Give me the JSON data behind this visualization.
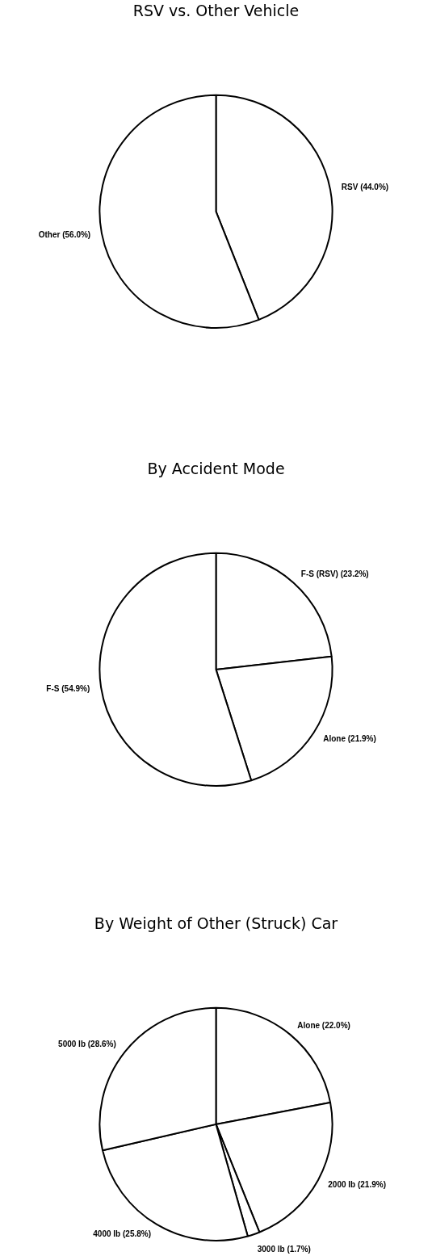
{
  "chart_data": [
    {
      "type": "pie",
      "title": "RSV vs. Other Vehicle",
      "categories": [
        "RSV",
        "Other"
      ],
      "values": [
        44.0,
        56.0
      ],
      "colors": [
        "#ffffff",
        "#ffffff"
      ],
      "value_labels": [
        "(44.0%)",
        "(56.0%)"
      ],
      "legend": false
    },
    {
      "type": "pie",
      "title": "By Accident Mode",
      "categories": [
        "F-S (RSV)",
        "Alone",
        "F-S"
      ],
      "values": [
        23.2,
        21.9,
        54.9
      ],
      "colors": [
        "#ffffff",
        "#ffffff",
        "#ffffff"
      ],
      "value_labels": [
        "(23.2%)",
        "(21.9%)",
        "(54.9%)"
      ],
      "legend": false
    },
    {
      "type": "pie",
      "title": "By Weight of Other (Struck) Car",
      "categories": [
        "Alone",
        "2000 lb",
        "3000 lb",
        "4000 lb",
        "5000 lb"
      ],
      "values": [
        22.0,
        21.9,
        1.7,
        25.8,
        28.6
      ],
      "colors": [
        "#ffffff",
        "#ffffff",
        "#ffffff",
        "#ffffff",
        "#ffffff"
      ],
      "value_labels": [
        "(22.0%)",
        "(21.9%)",
        "(1.7%)",
        "(25.8%)",
        "(28.6%)"
      ],
      "legend": false
    }
  ]
}
